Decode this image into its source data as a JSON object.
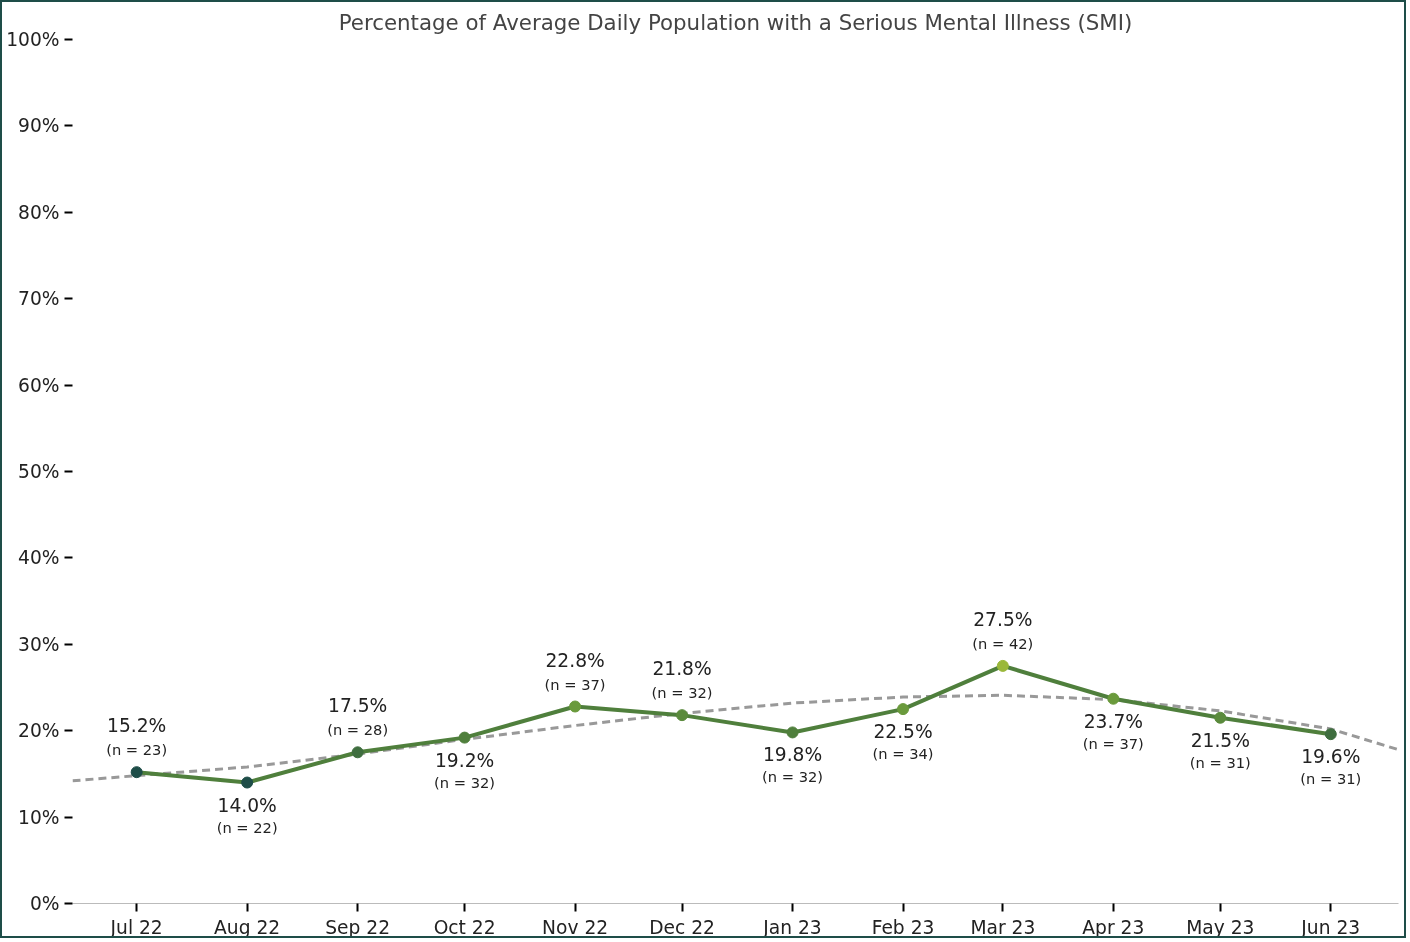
{
  "chart_data": {
    "type": "line",
    "title": "Percentage of Average Daily Population with a Serious Mental Illness (SMI)",
    "x": [
      "2022-07",
      "2022-08",
      "2022-09",
      "2022-10",
      "2022-11",
      "2022-12",
      "2023-01",
      "2023-02",
      "2023-03",
      "2023-04",
      "2023-05",
      "2023-06"
    ],
    "series": [
      {
        "color": "#4f7f3c",
        "marker": "circle",
        "line_style": "solid",
        "colors": [
          "#1e4d48",
          "#1e4d48",
          "#3f6e3f",
          "#4f7f3c",
          "#6a9a3c",
          "#5a8a3c",
          "#4f7f3c",
          "#6a9a3c",
          "#9ab83a",
          "#6a9a3c",
          "#5a8a3c",
          "#3f6e3f"
        ],
        "values": [
          15.2,
          14.0,
          17.5,
          19.2,
          22.8,
          21.8,
          19.8,
          22.5,
          27.5,
          23.7,
          21.5,
          19.6
        ],
        "value_labels": [
          "15.2%\n(n = 23)",
          "14.0%\n(n = 22)",
          "17.5%\n(n = 28)",
          "19.2%\n(n = 32)",
          "22.8%\n(n = 37)",
          "21.8%\n(n = 32)",
          "19.8%\n(n = 32)",
          "22.5%\n(n = 34)",
          "27.5%\n(n = 42)",
          "23.7%\n(n = 37)",
          "21.5%\n(n = 31)",
          "19.6%\n(n = 31)"
        ]
      },
      {
        "color": "#999999",
        "marker": "none",
        "line_style": "dashed",
        "x": [
          "2022-06-13",
          "2022-07-01",
          "2022-08-01",
          "2022-09-01",
          "2022-10-01",
          "2022-11-01",
          "2022-12-01",
          "2023-01-01",
          "2023-02-01",
          "2023-03-01",
          "2023-04-01",
          "2023-05-01",
          "2023-06-01",
          "2023-06-20"
        ],
        "values": [
          14.2,
          14.8,
          15.8,
          17.3,
          19.0,
          20.6,
          22.0,
          23.2,
          23.9,
          24.1,
          23.6,
          22.3,
          20.2,
          17.8
        ]
      }
    ],
    "xlim": [
      "2022-06-13",
      "2023-06-20"
    ],
    "xticks": [
      {
        "value": "2022-07",
        "label": "Jul 22"
      },
      {
        "value": "2022-08",
        "label": "Aug 22"
      },
      {
        "value": "2022-09",
        "label": "Sep 22"
      },
      {
        "value": "2022-10",
        "label": "Oct 22"
      },
      {
        "value": "2022-11",
        "label": "Nov 22"
      },
      {
        "value": "2022-12",
        "label": "Dec 22"
      },
      {
        "value": "2023-01",
        "label": "Jan 23"
      },
      {
        "value": "2023-02",
        "label": "Feb 23"
      },
      {
        "value": "2023-03",
        "label": "Mar 23"
      },
      {
        "value": "2023-04",
        "label": "Apr 23"
      },
      {
        "value": "2023-05",
        "label": "May 23"
      },
      {
        "value": "2023-06",
        "label": "Jun 23"
      }
    ],
    "ylim": [
      0,
      100
    ],
    "yticks": [
      {
        "value": 0,
        "label": "0%"
      },
      {
        "value": 10,
        "label": "10%"
      },
      {
        "value": 20,
        "label": "20%"
      },
      {
        "value": 30,
        "label": "30%"
      },
      {
        "value": 40,
        "label": "40%"
      },
      {
        "value": 50,
        "label": "50%"
      },
      {
        "value": 60,
        "label": "60%"
      },
      {
        "value": 70,
        "label": "70%"
      },
      {
        "value": 80,
        "label": "80%"
      },
      {
        "value": 90,
        "label": "90%"
      },
      {
        "value": 100,
        "label": "100%"
      }
    ],
    "grid": false
  }
}
